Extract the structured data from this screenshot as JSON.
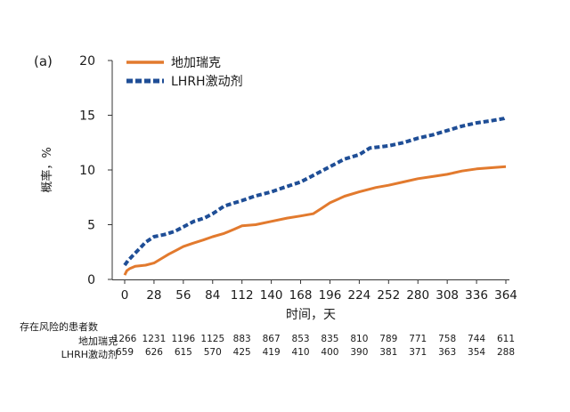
{
  "panel_label": "(a)",
  "risk_table": {
    "title": "存在风险的患者数",
    "rows": [
      {
        "name": "地加瑞克",
        "values": [
          "1266",
          "1231",
          "1196",
          "1125",
          "883",
          "867",
          "853",
          "835",
          "810",
          "789",
          "771",
          "758",
          "744",
          "611"
        ]
      },
      {
        "name": "LHRH激动剂",
        "values": [
          "659",
          "626",
          "615",
          "570",
          "425",
          "419",
          "410",
          "400",
          "390",
          "381",
          "371",
          "363",
          "354",
          "288"
        ]
      }
    ]
  },
  "colors": {
    "degarelix": "#e27a2e",
    "lhrh": "#1f4e96",
    "axis": "#333333",
    "text": "#1a1a1a"
  },
  "chart_data": {
    "type": "line",
    "title": "",
    "xlabel": "时间，天",
    "ylabel": "概率，%",
    "xlim": [
      0,
      364
    ],
    "ylim": [
      0,
      20
    ],
    "xticks": [
      0,
      28,
      56,
      84,
      112,
      140,
      168,
      196,
      224,
      252,
      280,
      308,
      336,
      364
    ],
    "yticks": [
      0,
      5,
      10,
      15,
      20
    ],
    "legend_position": "top-left",
    "series": [
      {
        "name": "地加瑞克",
        "style": "solid",
        "color": "#e27a2e",
        "points": [
          [
            0,
            0.4
          ],
          [
            2,
            0.8
          ],
          [
            5,
            1.0
          ],
          [
            10,
            1.2
          ],
          [
            20,
            1.3
          ],
          [
            28,
            1.5
          ],
          [
            35,
            1.9
          ],
          [
            42,
            2.3
          ],
          [
            50,
            2.7
          ],
          [
            56,
            3.0
          ],
          [
            65,
            3.3
          ],
          [
            75,
            3.6
          ],
          [
            84,
            3.9
          ],
          [
            95,
            4.2
          ],
          [
            105,
            4.6
          ],
          [
            112,
            4.9
          ],
          [
            125,
            5.0
          ],
          [
            140,
            5.3
          ],
          [
            155,
            5.6
          ],
          [
            168,
            5.8
          ],
          [
            180,
            6.0
          ],
          [
            188,
            6.5
          ],
          [
            196,
            7.0
          ],
          [
            210,
            7.6
          ],
          [
            224,
            8.0
          ],
          [
            240,
            8.4
          ],
          [
            252,
            8.6
          ],
          [
            266,
            8.9
          ],
          [
            280,
            9.2
          ],
          [
            294,
            9.4
          ],
          [
            308,
            9.6
          ],
          [
            322,
            9.9
          ],
          [
            336,
            10.1
          ],
          [
            350,
            10.2
          ],
          [
            364,
            10.3
          ]
        ]
      },
      {
        "name": "LHRH激动剂",
        "style": "dashed",
        "color": "#1f4e96",
        "points": [
          [
            0,
            1.3
          ],
          [
            3,
            1.7
          ],
          [
            8,
            2.2
          ],
          [
            14,
            2.8
          ],
          [
            20,
            3.4
          ],
          [
            28,
            3.9
          ],
          [
            38,
            4.1
          ],
          [
            48,
            4.4
          ],
          [
            56,
            4.8
          ],
          [
            66,
            5.3
          ],
          [
            76,
            5.6
          ],
          [
            84,
            6.0
          ],
          [
            95,
            6.7
          ],
          [
            105,
            7.0
          ],
          [
            112,
            7.2
          ],
          [
            124,
            7.6
          ],
          [
            140,
            8.0
          ],
          [
            152,
            8.4
          ],
          [
            168,
            8.9
          ],
          [
            180,
            9.5
          ],
          [
            196,
            10.3
          ],
          [
            210,
            11.0
          ],
          [
            224,
            11.4
          ],
          [
            234,
            12.0
          ],
          [
            252,
            12.2
          ],
          [
            266,
            12.5
          ],
          [
            280,
            12.9
          ],
          [
            294,
            13.2
          ],
          [
            308,
            13.6
          ],
          [
            322,
            14.0
          ],
          [
            336,
            14.3
          ],
          [
            350,
            14.5
          ],
          [
            362,
            14.7
          ],
          [
            364,
            14.8
          ]
        ]
      }
    ]
  }
}
